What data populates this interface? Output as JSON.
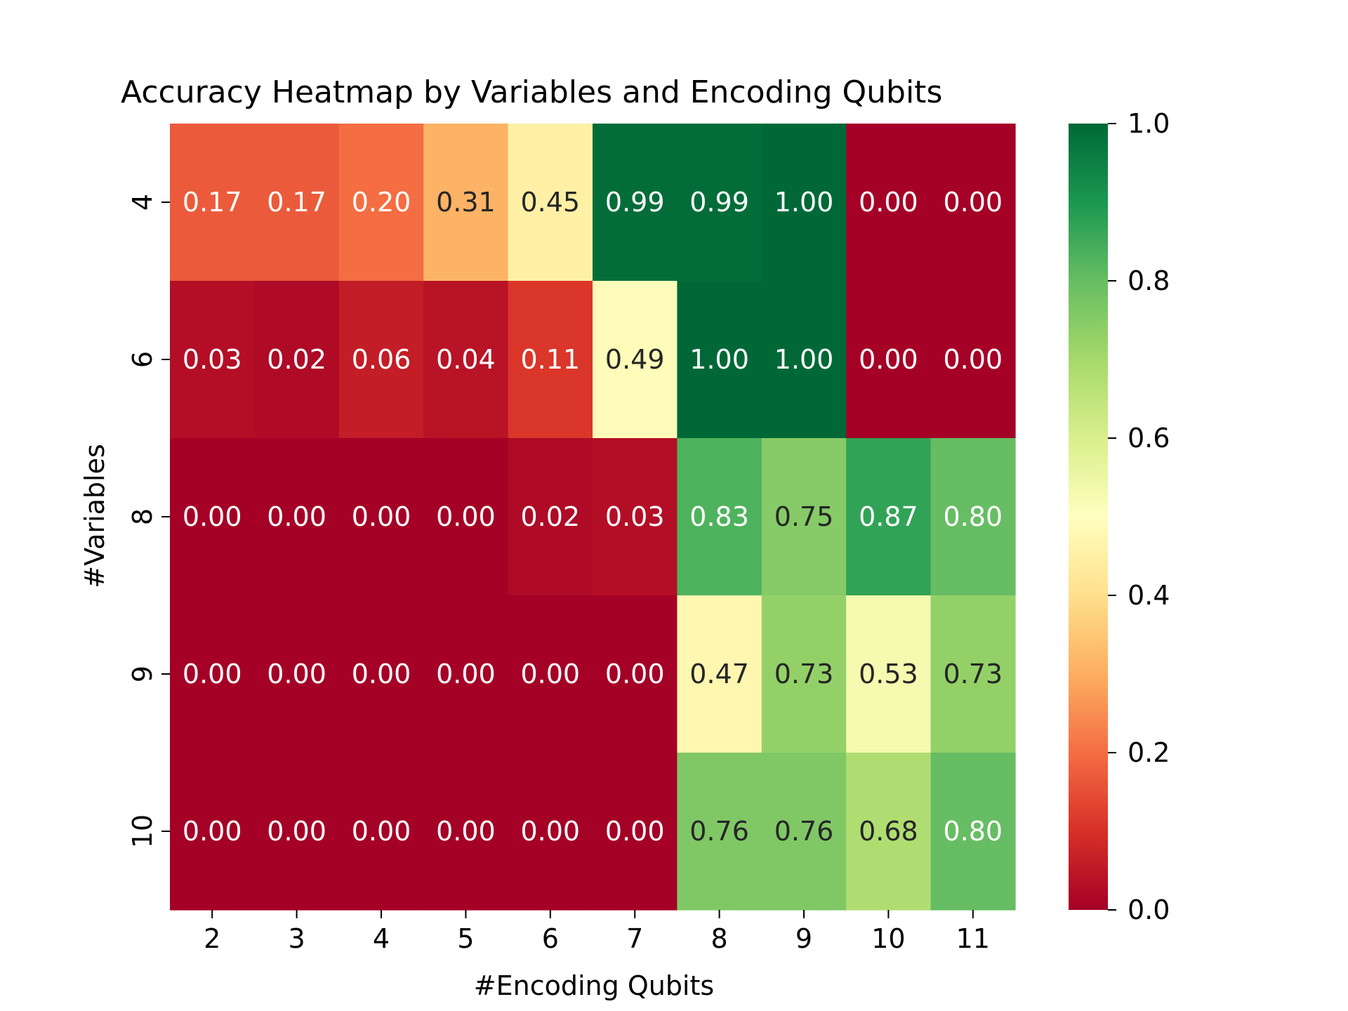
{
  "chart_data": {
    "type": "heatmap",
    "title": "Accuracy Heatmap by Variables and Encoding Qubits",
    "xlabel": "#Encoding Qubits",
    "ylabel": "#Variables",
    "x_categories": [
      "2",
      "3",
      "4",
      "5",
      "6",
      "7",
      "8",
      "9",
      "10",
      "11"
    ],
    "y_categories": [
      "4",
      "6",
      "8",
      "9",
      "10"
    ],
    "values": [
      [
        0.17,
        0.17,
        0.2,
        0.31,
        0.45,
        0.99,
        0.99,
        1.0,
        0.0,
        0.0
      ],
      [
        0.03,
        0.02,
        0.06,
        0.04,
        0.11,
        0.49,
        1.0,
        1.0,
        0.0,
        0.0
      ],
      [
        0.0,
        0.0,
        0.0,
        0.0,
        0.02,
        0.03,
        0.83,
        0.75,
        0.87,
        0.8
      ],
      [
        0.0,
        0.0,
        0.0,
        0.0,
        0.0,
        0.0,
        0.47,
        0.73,
        0.53,
        0.73
      ],
      [
        0.0,
        0.0,
        0.0,
        0.0,
        0.0,
        0.0,
        0.76,
        0.76,
        0.68,
        0.8
      ]
    ],
    "value_format": "0.00",
    "colormap": "RdYlGn",
    "vmin": 0.0,
    "vmax": 1.0,
    "colorbar_ticks": [
      "0.0",
      "0.2",
      "0.4",
      "0.6",
      "0.8",
      "1.0"
    ],
    "colorbar_position": "right",
    "grid": false
  }
}
